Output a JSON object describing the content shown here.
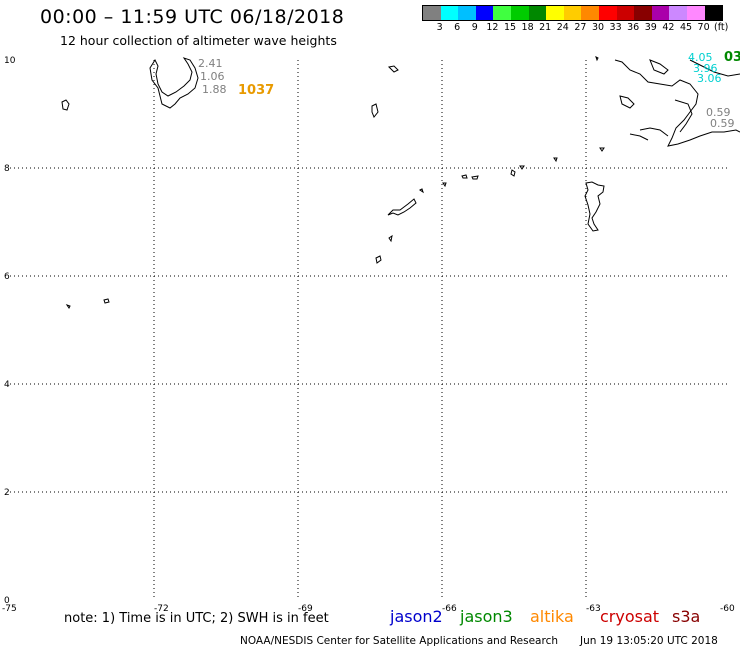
{
  "header": {
    "title": "00:00 – 11:59 UTC 06/18/2018",
    "subtitle": "12 hour collection of altimeter wave heights"
  },
  "scale": {
    "colors": [
      "#808080",
      "#00ffff",
      "#00bfff",
      "#0000ff",
      "#40ff40",
      "#00cc00",
      "#008800",
      "#ffff00",
      "#ffcc00",
      "#ff8800",
      "#ff0000",
      "#cc0000",
      "#880000",
      "#aa00aa",
      "#cc88ff",
      "#ff88ff",
      "#000000"
    ],
    "labels": [
      "3",
      "6",
      "9",
      "12",
      "15",
      "18",
      "21",
      "24",
      "27",
      "30",
      "33",
      "36",
      "39",
      "42",
      "45",
      "70",
      "(ft)"
    ]
  },
  "map": {
    "x_ticks": [
      "-75",
      "-72",
      "-69",
      "-66",
      "-63",
      "-60"
    ],
    "y_ticks": [
      "0",
      "2",
      "4",
      "6",
      "8",
      "10"
    ],
    "lon_range": [
      -75,
      -60
    ],
    "lat_range": [
      0,
      10
    ],
    "observations": [
      {
        "text": "2.41",
        "color": "#808080"
      },
      {
        "text": "1.06",
        "color": "#808080"
      },
      {
        "text": "1.88",
        "color": "#808080"
      },
      {
        "text": "1037",
        "color": "#e89a00"
      },
      {
        "text": "4.05",
        "color": "#00d0d0"
      },
      {
        "text": "03",
        "color": "#008800"
      },
      {
        "text": "3.96",
        "color": "#00d0d0"
      },
      {
        "text": "3.06",
        "color": "#00d0d0"
      },
      {
        "text": "0.59",
        "color": "#808080"
      },
      {
        "text": "0.59",
        "color": "#808080"
      }
    ]
  },
  "footer": {
    "note": "note: 1) Time is in UTC; 2) SWH is in feet",
    "satellites": [
      {
        "name": "jason2",
        "color": "#0000cc"
      },
      {
        "name": "jason3",
        "color": "#008800"
      },
      {
        "name": "altika",
        "color": "#ff8800"
      },
      {
        "name": "cryosat",
        "color": "#cc0000"
      },
      {
        "name": "s3a",
        "color": "#880000"
      }
    ],
    "credit": "NOAA/NESDIS Center for Satellite Applications and Research",
    "timestamp": "Jun 19 13:05:20 UTC 2018"
  }
}
